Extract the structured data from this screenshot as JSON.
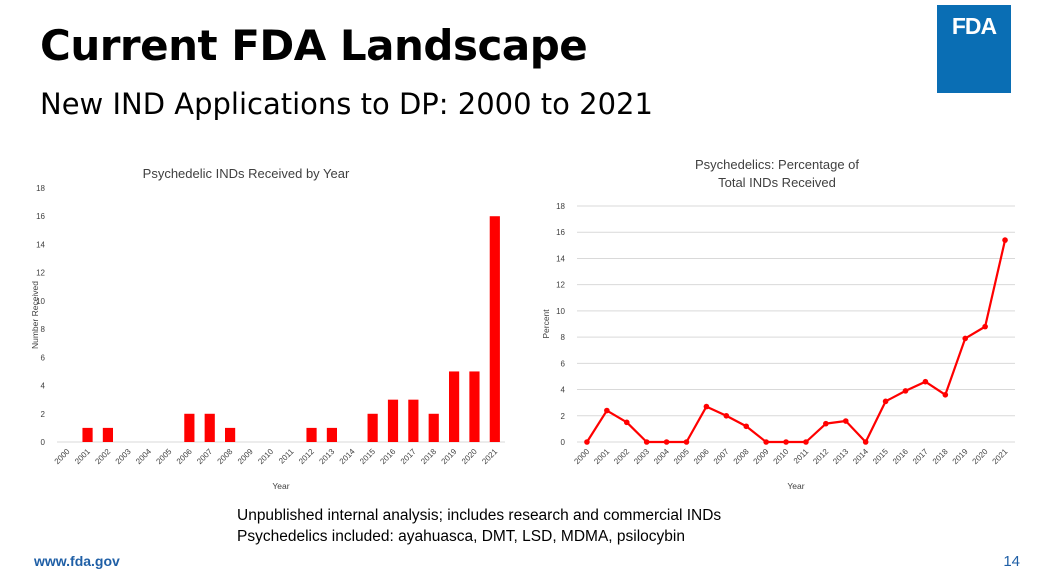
{
  "slide": {
    "title": "Current FDA Landscape",
    "subtitle": "New IND Applications to DP: 2000 to 2021",
    "logo_text": "FDA",
    "notes": [
      "Unpublished internal analysis; includes research and commercial INDs",
      "Psychedelics included: ayahuasca, DMT, LSD, MDMA, psilocybin"
    ],
    "footer_url": "www.fda.gov",
    "page_number": "14"
  },
  "colors": {
    "series": "#ff0000",
    "logo_background": "#0a6eb4",
    "footer": "#1f5fa6"
  },
  "chart_data": [
    {
      "type": "bar",
      "title": "Psychedelic INDs Received by Year",
      "title_lines": [
        "Psychedelic INDs Received by Year"
      ],
      "xlabel": "Year",
      "ylabel": "Number Received",
      "categories": [
        "2000",
        "2001",
        "2002",
        "2003",
        "2004",
        "2005",
        "2006",
        "2007",
        "2008",
        "2009",
        "2010",
        "2011",
        "2012",
        "2013",
        "2014",
        "2015",
        "2016",
        "2017",
        "2018",
        "2019",
        "2020",
        "2021"
      ],
      "values": [
        0,
        1,
        1,
        0,
        0,
        0,
        2,
        2,
        1,
        0,
        0,
        0,
        1,
        1,
        0,
        2,
        3,
        3,
        2,
        5,
        5,
        16
      ],
      "ylim": [
        0,
        18
      ],
      "yticks": [
        0,
        2,
        4,
        6,
        8,
        10,
        12,
        14,
        16,
        18
      ],
      "grid": false,
      "legend": "none"
    },
    {
      "type": "line",
      "title": "Psychedelics: Percentage of Total INDs Received",
      "title_lines": [
        "Psychedelics: Percentage of",
        "Total INDs Received"
      ],
      "xlabel": "Year",
      "ylabel": "Percent",
      "categories": [
        "2000",
        "2001",
        "2002",
        "2003",
        "2004",
        "2005",
        "2006",
        "2007",
        "2008",
        "2009",
        "2010",
        "2011",
        "2012",
        "2013",
        "2014",
        "2015",
        "2016",
        "2017",
        "2018",
        "2019",
        "2020",
        "2021"
      ],
      "values": [
        0,
        2.4,
        1.5,
        0,
        0,
        0,
        2.7,
        2.0,
        1.2,
        0,
        0,
        0,
        1.4,
        1.6,
        0,
        3.1,
        3.9,
        4.6,
        3.6,
        7.9,
        8.8,
        15.4
      ],
      "ylim": [
        0,
        18
      ],
      "yticks": [
        0,
        2,
        4,
        6,
        8,
        10,
        12,
        14,
        16,
        18
      ],
      "grid": true,
      "markers": true,
      "legend": "none"
    }
  ]
}
